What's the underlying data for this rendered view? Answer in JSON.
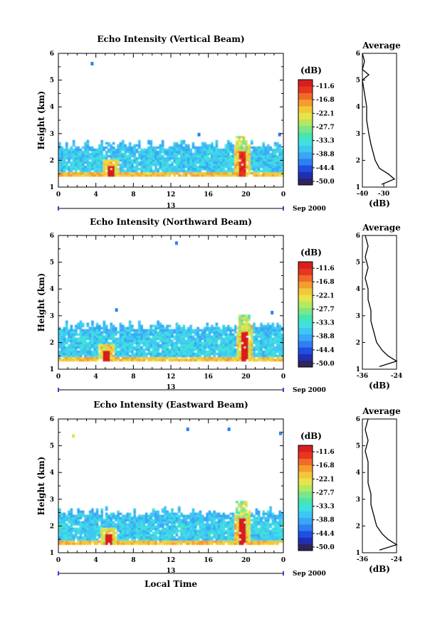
{
  "colorscale": {
    "unit": "(dB)",
    "ticks": [
      "-11.6",
      "-16.8",
      "-22.1",
      "-27.7",
      "-33.3",
      "-38.8",
      "-44.4",
      "-50.0"
    ],
    "colors": [
      "#30245c",
      "#1f2fb4",
      "#1e4fe0",
      "#2f7ef2",
      "#38a7f5",
      "#3fc6f2",
      "#3fe0e0",
      "#45e6b0",
      "#7be68a",
      "#b5e860",
      "#e6e44a",
      "#f2c83a",
      "#f59c2e",
      "#f26a28",
      "#e83522",
      "#d81f1f"
    ]
  },
  "xaxis": {
    "ticks": [
      "0",
      "4",
      "8",
      "12",
      "16",
      "20",
      "0"
    ],
    "day": "13",
    "month_label": "Sep 2000",
    "label": "Local Time"
  },
  "panels": [
    {
      "title": "Echo Intensity (Vertical Beam)",
      "ylabel": "Height (km)",
      "yticks": [
        "1",
        "2",
        "3",
        "4",
        "5",
        "6"
      ],
      "avg_title": "Average",
      "avg_xlabel": "(dB)",
      "avg_xticks": [
        "-40",
        "-30"
      ]
    },
    {
      "title": "Echo Intensity (Northward Beam)",
      "ylabel": "Height (km)",
      "yticks": [
        "1",
        "2",
        "3",
        "4",
        "5",
        "6"
      ],
      "avg_title": "Average",
      "avg_xlabel": "(dB)",
      "avg_xticks": [
        "-36",
        "-24"
      ]
    },
    {
      "title": "Echo Intensity (Eastward Beam)",
      "ylabel": "Height (km)",
      "yticks": [
        "1",
        "2",
        "3",
        "4",
        "5",
        "6"
      ],
      "avg_title": "Average",
      "avg_xlabel": "(dB)",
      "avg_xticks": [
        "-36",
        "-24"
      ]
    }
  ],
  "chart_data": [
    {
      "type": "heatmap",
      "title": "Echo Intensity (Vertical Beam)",
      "xlabel": "Local Time",
      "ylabel": "Height (km)",
      "xlim_hours": [
        0,
        24
      ],
      "ylim_km": [
        1,
        6
      ],
      "colorbar_db": [
        -50.0,
        -11.6
      ],
      "echo_layer": {
        "bottom_km": 1.4,
        "top_km": 2.55,
        "typical_db": -36
      },
      "strong_cells": [
        {
          "time_h": 5.4,
          "bottom_km": 1.4,
          "top_km": 2.0,
          "peak_db": -12
        },
        {
          "time_h": 19.5,
          "bottom_km": 1.4,
          "top_km": 2.9,
          "peak_db": -16
        }
      ],
      "scattered_points": [
        {
          "time_h": 3.6,
          "height_km": 5.6
        },
        {
          "time_h": 15.0,
          "height_km": 2.95
        },
        {
          "time_h": 23.6,
          "height_km": 2.95
        }
      ],
      "average_profile": {
        "xlim_db": [
          -40,
          -24
        ],
        "height_km": [
          1.1,
          1.3,
          1.5,
          1.7,
          2.0,
          2.3,
          2.6,
          3.0,
          3.5,
          4.0,
          4.5,
          5.0,
          5.2,
          5.4,
          5.7,
          6.0
        ],
        "db": [
          -31,
          -25,
          -28,
          -32,
          -34,
          -35,
          -36,
          -37,
          -38,
          -38,
          -39,
          -40,
          -37,
          -40,
          -39,
          -40
        ]
      }
    },
    {
      "type": "heatmap",
      "title": "Echo Intensity (Northward Beam)",
      "xlabel": "Local Time",
      "ylabel": "Height (km)",
      "xlim_hours": [
        0,
        24
      ],
      "ylim_km": [
        1,
        6
      ],
      "colorbar_db": [
        -50.0,
        -11.6
      ],
      "echo_layer": {
        "bottom_km": 1.3,
        "top_km": 2.6,
        "typical_db": -36
      },
      "strong_cells": [
        {
          "time_h": 5.0,
          "bottom_km": 1.3,
          "top_km": 1.9,
          "peak_db": -14
        },
        {
          "time_h": 19.8,
          "bottom_km": 1.3,
          "top_km": 3.0,
          "peak_db": -14
        }
      ],
      "scattered_points": [
        {
          "time_h": 6.2,
          "height_km": 3.2
        },
        {
          "time_h": 12.6,
          "height_km": 5.7
        },
        {
          "time_h": 22.8,
          "height_km": 3.1
        }
      ],
      "average_profile": {
        "xlim_db": [
          -36,
          -24
        ],
        "height_km": [
          1.1,
          1.3,
          1.5,
          1.7,
          2.0,
          2.4,
          2.8,
          3.2,
          3.6,
          4.0,
          4.4,
          4.8,
          5.2,
          5.6,
          6.0
        ],
        "db": [
          -30,
          -24,
          -27,
          -29,
          -31,
          -32,
          -33,
          -33,
          -34,
          -34,
          -35,
          -34,
          -35,
          -34,
          -35
        ]
      }
    },
    {
      "type": "heatmap",
      "title": "Echo Intensity (Eastward Beam)",
      "xlabel": "Local Time",
      "ylabel": "Height (km)",
      "xlim_hours": [
        0,
        24
      ],
      "ylim_km": [
        1,
        6
      ],
      "colorbar_db": [
        -50.0,
        -11.6
      ],
      "echo_layer": {
        "bottom_km": 1.3,
        "top_km": 2.5,
        "typical_db": -36
      },
      "strong_cells": [
        {
          "time_h": 5.2,
          "bottom_km": 1.3,
          "top_km": 1.9,
          "peak_db": -14
        },
        {
          "time_h": 19.5,
          "bottom_km": 1.3,
          "top_km": 2.9,
          "peak_db": -13
        }
      ],
      "scattered_points": [
        {
          "time_h": 1.6,
          "height_km": 5.35
        },
        {
          "time_h": 13.8,
          "height_km": 5.6
        },
        {
          "time_h": 18.2,
          "height_km": 5.6
        },
        {
          "time_h": 23.7,
          "height_km": 5.45
        }
      ],
      "average_profile": {
        "xlim_db": [
          -36,
          -24
        ],
        "height_km": [
          1.1,
          1.3,
          1.5,
          1.7,
          2.0,
          2.4,
          2.8,
          3.2,
          3.6,
          4.0,
          4.4,
          4.8,
          5.2,
          5.6,
          6.0
        ],
        "db": [
          -30,
          -24,
          -27,
          -29,
          -31,
          -32,
          -33,
          -33,
          -34,
          -34,
          -34,
          -35,
          -34,
          -35,
          -34
        ]
      }
    }
  ]
}
